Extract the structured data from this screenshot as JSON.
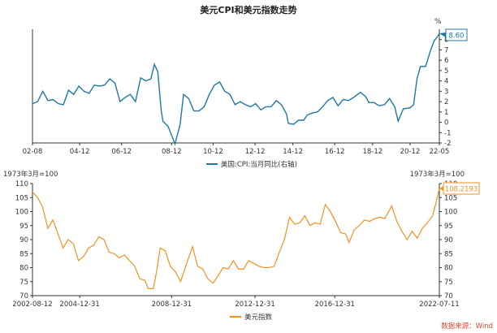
{
  "page_title": "美元CPI和美元指数走势",
  "source_note": "数据来源：Wind",
  "chart_data": [
    {
      "type": "line",
      "unit_label": "%",
      "legend": "美国:CPI:当月同比(右轴)",
      "legend_position": "bottom-center",
      "y_axis_side": "right",
      "ylim": [
        -2,
        9
      ],
      "yticks": [
        -2,
        -1,
        0,
        1,
        2,
        3,
        4,
        5,
        6,
        7,
        8
      ],
      "x_ticks": [
        "02-08",
        "04-12",
        "06-12",
        "08-12",
        "10-12",
        "12-12",
        "14-12",
        "16-12",
        "18-12",
        "20-12",
        "22-05"
      ],
      "grid": false,
      "line_color": "#1f77a8",
      "end_label": "8.60",
      "series": [
        {
          "x": [
            "2002-08",
            "2002-11",
            "2003-02",
            "2003-05",
            "2003-08",
            "2003-11",
            "2004-02",
            "2004-05",
            "2004-08",
            "2004-11",
            "2005-02",
            "2005-05",
            "2005-08",
            "2005-11",
            "2006-02",
            "2006-05",
            "2006-08",
            "2006-11",
            "2007-02",
            "2007-05",
            "2007-08",
            "2007-11",
            "2008-02",
            "2008-05",
            "2008-07",
            "2008-09",
            "2008-11",
            "2008-12",
            "2009-03",
            "2009-07",
            "2009-10",
            "2009-12",
            "2010-03",
            "2010-06",
            "2010-09",
            "2010-12",
            "2011-03",
            "2011-06",
            "2011-09",
            "2011-12",
            "2012-03",
            "2012-06",
            "2012-09",
            "2012-12",
            "2013-03",
            "2013-06",
            "2013-09",
            "2013-12",
            "2014-03",
            "2014-06",
            "2014-09",
            "2014-12",
            "2015-01",
            "2015-04",
            "2015-07",
            "2015-10",
            "2015-12",
            "2016-03",
            "2016-06",
            "2016-09",
            "2016-12",
            "2017-03",
            "2017-06",
            "2017-09",
            "2017-12",
            "2018-03",
            "2018-07",
            "2018-10",
            "2018-12",
            "2019-03",
            "2019-06",
            "2019-09",
            "2019-12",
            "2020-03",
            "2020-05",
            "2020-08",
            "2020-12",
            "2021-02",
            "2021-04",
            "2021-06",
            "2021-09",
            "2021-12",
            "2022-02",
            "2022-04",
            "2022-05"
          ],
          "y": [
            1.8,
            2.0,
            3.0,
            2.1,
            2.2,
            1.8,
            1.7,
            3.1,
            2.7,
            3.5,
            3.0,
            2.8,
            3.6,
            3.5,
            3.6,
            4.2,
            3.8,
            2.0,
            2.4,
            2.7,
            2.0,
            4.3,
            4.0,
            4.2,
            5.6,
            4.9,
            1.1,
            0.1,
            -0.4,
            -2.1,
            -0.2,
            2.7,
            2.3,
            1.1,
            1.1,
            1.5,
            2.7,
            3.6,
            3.9,
            3.0,
            2.7,
            1.7,
            2.0,
            1.7,
            1.5,
            1.8,
            1.2,
            1.5,
            1.5,
            2.1,
            1.7,
            0.8,
            -0.1,
            -0.2,
            0.2,
            0.2,
            0.7,
            0.9,
            1.0,
            1.5,
            2.1,
            2.4,
            1.6,
            2.2,
            2.1,
            2.4,
            2.9,
            2.5,
            1.9,
            1.9,
            1.6,
            1.7,
            2.3,
            1.5,
            0.1,
            1.3,
            1.4,
            1.7,
            4.2,
            5.4,
            5.4,
            7.0,
            7.9,
            8.3,
            8.6
          ]
        }
      ]
    },
    {
      "type": "line",
      "unit_label_left": "1973年3月=100",
      "unit_label_right": "1973年3月=100",
      "legend": "美元指数",
      "legend_position": "bottom-center",
      "ylim": [
        70,
        110
      ],
      "yticks": [
        70,
        75,
        80,
        85,
        90,
        95,
        100,
        105,
        110
      ],
      "x_ticks": [
        "2002-08-12",
        "2004-12-31",
        "2008-12-31",
        "2012-12-31",
        "2016-12-31",
        "2022-07-11"
      ],
      "grid": false,
      "line_color": "#f5901e",
      "end_label": "108.2193",
      "series": [
        {
          "x": [
            "2002-08",
            "2002-11",
            "2003-02",
            "2003-05",
            "2003-08",
            "2003-11",
            "2004-02",
            "2004-05",
            "2004-08",
            "2004-11",
            "2005-02",
            "2005-05",
            "2005-08",
            "2005-11",
            "2006-02",
            "2006-05",
            "2006-08",
            "2006-11",
            "2007-02",
            "2007-05",
            "2007-08",
            "2007-11",
            "2008-02",
            "2008-04",
            "2008-07",
            "2008-09",
            "2008-11",
            "2009-02",
            "2009-05",
            "2009-08",
            "2009-11",
            "2010-02",
            "2010-06",
            "2010-09",
            "2010-12",
            "2011-03",
            "2011-06",
            "2011-09",
            "2011-12",
            "2012-03",
            "2012-06",
            "2012-09",
            "2012-12",
            "2013-03",
            "2013-06",
            "2013-09",
            "2013-12",
            "2014-03",
            "2014-06",
            "2014-09",
            "2014-12",
            "2015-03",
            "2015-06",
            "2015-09",
            "2015-12",
            "2016-03",
            "2016-06",
            "2016-09",
            "2016-12",
            "2017-03",
            "2017-06",
            "2017-09",
            "2017-12",
            "2018-02",
            "2018-05",
            "2018-08",
            "2018-11",
            "2019-02",
            "2019-05",
            "2019-08",
            "2019-11",
            "2020-03",
            "2020-06",
            "2020-09",
            "2020-12",
            "2021-03",
            "2021-06",
            "2021-09",
            "2021-12",
            "2022-03",
            "2022-05",
            "2022-07"
          ],
          "y": [
            107.0,
            105.0,
            101.5,
            94.0,
            97.0,
            92.0,
            87.0,
            90.0,
            88.5,
            82.5,
            84.0,
            87.0,
            88.0,
            91.0,
            90.0,
            85.5,
            85.0,
            83.5,
            84.5,
            82.5,
            80.5,
            76.0,
            75.5,
            72.5,
            72.5,
            79.0,
            87.0,
            86.0,
            80.5,
            78.5,
            75.0,
            80.5,
            87.5,
            80.5,
            79.5,
            76.0,
            74.5,
            77.0,
            80.0,
            79.5,
            82.5,
            79.5,
            79.5,
            82.5,
            81.5,
            80.5,
            80.0,
            80.0,
            80.5,
            85.5,
            90.0,
            98.0,
            95.5,
            96.0,
            98.5,
            95.0,
            96.0,
            95.5,
            102.5,
            100.0,
            96.5,
            92.5,
            92.0,
            89.0,
            93.5,
            95.0,
            97.0,
            96.5,
            97.5,
            98.0,
            97.5,
            102.0,
            96.5,
            93.0,
            90.0,
            93.0,
            90.5,
            94.0,
            96.0,
            98.5,
            103.0,
            108.2
          ]
        }
      ]
    }
  ]
}
